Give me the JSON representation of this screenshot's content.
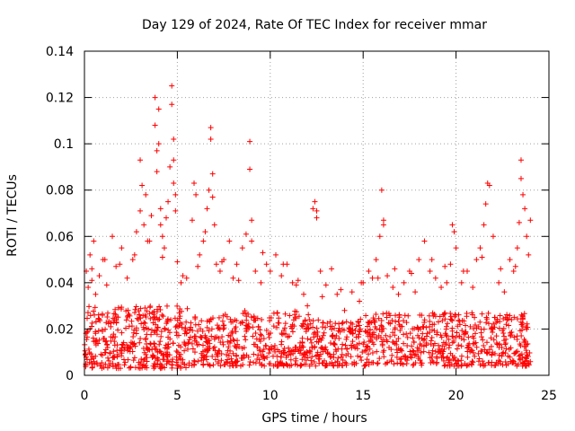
{
  "chart_data": {
    "type": "scatter",
    "title": "Day 129 of 2024, Rate Of TEC Index for receiver mmar",
    "xlabel": "GPS time / hours",
    "ylabel": "ROTI / TECUs",
    "xlim": [
      0,
      25
    ],
    "ylim": [
      0,
      0.14
    ],
    "xticks": [
      0,
      5,
      10,
      15,
      20,
      25
    ],
    "xtick_labels": [
      "0",
      "5",
      "10",
      "15",
      "20",
      "25"
    ],
    "yticks": [
      0,
      0.02,
      0.04,
      0.06,
      0.08,
      0.1,
      0.12,
      0.14
    ],
    "ytick_labels": [
      "0",
      "0.02",
      "0.04",
      "0.06",
      "0.08",
      "0.1",
      "0.12",
      "0.14"
    ],
    "grid": true,
    "marker": "plus",
    "series_color": "#ff0000",
    "series": [
      {
        "name": "ROTI",
        "x": [
          0.1,
          0.2,
          0.3,
          0.4,
          0.5,
          0.6,
          0.8,
          1.0,
          1.2,
          1.5,
          1.7,
          2.0,
          2.3,
          2.6,
          2.8,
          3.0,
          3.0,
          3.1,
          3.2,
          3.3,
          3.5,
          3.6,
          3.8,
          3.8,
          3.9,
          3.9,
          4.0,
          4.0,
          4.1,
          4.1,
          4.2,
          4.3,
          4.4,
          4.5,
          4.6,
          4.7,
          4.7,
          4.8,
          4.8,
          4.8,
          4.9,
          4.9,
          5.0,
          5.2,
          5.5,
          5.8,
          5.9,
          6.0,
          6.2,
          6.4,
          6.5,
          6.6,
          6.7,
          6.8,
          6.8,
          6.9,
          6.9,
          7.0,
          7.1,
          7.3,
          7.5,
          7.8,
          8.0,
          8.2,
          8.5,
          8.7,
          8.9,
          8.9,
          9.0,
          9.0,
          9.2,
          9.5,
          9.8,
          10.0,
          10.3,
          10.6,
          10.9,
          11.2,
          11.5,
          11.8,
          12.0,
          12.3,
          12.4,
          12.5,
          12.5,
          12.8,
          13.0,
          13.3,
          13.6,
          14.0,
          14.4,
          14.8,
          15.0,
          15.3,
          15.5,
          15.7,
          15.9,
          16.0,
          16.1,
          16.1,
          16.3,
          16.6,
          16.9,
          17.2,
          17.5,
          17.8,
          18.0,
          18.3,
          18.6,
          18.9,
          19.2,
          19.5,
          19.7,
          19.8,
          19.9,
          20.0,
          20.3,
          20.6,
          20.9,
          21.1,
          21.3,
          21.5,
          21.6,
          21.7,
          21.8,
          22.0,
          22.3,
          22.6,
          22.9,
          23.1,
          23.3,
          23.4,
          23.5,
          23.5,
          23.6,
          23.7,
          23.8,
          23.9,
          24.0,
          0.4,
          1.1,
          1.9,
          2.7,
          3.4,
          4.2,
          5.3,
          6.1,
          7.4,
          8.3,
          9.6,
          10.7,
          11.4,
          12.7,
          13.8,
          14.9,
          15.8,
          16.7,
          17.6,
          18.7,
          19.4,
          20.4,
          21.4,
          22.4,
          23.2
        ],
        "y": [
          0.045,
          0.038,
          0.052,
          0.041,
          0.058,
          0.035,
          0.043,
          0.05,
          0.039,
          0.06,
          0.047,
          0.055,
          0.042,
          0.05,
          0.062,
          0.071,
          0.093,
          0.082,
          0.065,
          0.078,
          0.058,
          0.069,
          0.12,
          0.108,
          0.097,
          0.088,
          0.115,
          0.1,
          0.072,
          0.065,
          0.06,
          0.055,
          0.068,
          0.075,
          0.09,
          0.125,
          0.117,
          0.102,
          0.093,
          0.083,
          0.078,
          0.071,
          0.049,
          0.04,
          0.042,
          0.067,
          0.083,
          0.078,
          0.052,
          0.058,
          0.062,
          0.072,
          0.08,
          0.107,
          0.102,
          0.087,
          0.077,
          0.065,
          0.048,
          0.045,
          0.05,
          0.058,
          0.042,
          0.048,
          0.055,
          0.061,
          0.101,
          0.089,
          0.067,
          0.058,
          0.045,
          0.04,
          0.048,
          0.045,
          0.052,
          0.043,
          0.048,
          0.04,
          0.041,
          0.035,
          0.03,
          0.072,
          0.075,
          0.071,
          0.068,
          0.034,
          0.039,
          0.046,
          0.035,
          0.028,
          0.036,
          0.032,
          0.04,
          0.045,
          0.042,
          0.05,
          0.06,
          0.08,
          0.067,
          0.065,
          0.043,
          0.038,
          0.035,
          0.04,
          0.045,
          0.036,
          0.05,
          0.058,
          0.045,
          0.042,
          0.038,
          0.04,
          0.048,
          0.065,
          0.062,
          0.055,
          0.04,
          0.045,
          0.038,
          0.05,
          0.055,
          0.065,
          0.074,
          0.083,
          0.082,
          0.06,
          0.04,
          0.036,
          0.05,
          0.045,
          0.055,
          0.066,
          0.093,
          0.085,
          0.078,
          0.072,
          0.06,
          0.052,
          0.067,
          0.046,
          0.05,
          0.048,
          0.052,
          0.058,
          0.051,
          0.043,
          0.047,
          0.049,
          0.041,
          0.053,
          0.048,
          0.039,
          0.045,
          0.037,
          0.04,
          0.042,
          0.046,
          0.044,
          0.05,
          0.047,
          0.045,
          0.051,
          0.046,
          0.047
        ]
      }
    ],
    "dense_band": [
      {
        "x0": 0.0,
        "x1": 5.6,
        "ymin": 0.003,
        "ymax": 0.03,
        "density": 6
      },
      {
        "x0": 5.6,
        "x1": 7.3,
        "ymin": 0.004,
        "ymax": 0.026,
        "density": 5
      },
      {
        "x0": 7.3,
        "x1": 12.2,
        "ymin": 0.004,
        "ymax": 0.028,
        "density": 5
      },
      {
        "x0": 12.2,
        "x1": 14.5,
        "ymin": 0.004,
        "ymax": 0.024,
        "density": 5
      },
      {
        "x0": 14.5,
        "x1": 24.0,
        "ymin": 0.004,
        "ymax": 0.027,
        "density": 5
      }
    ]
  }
}
